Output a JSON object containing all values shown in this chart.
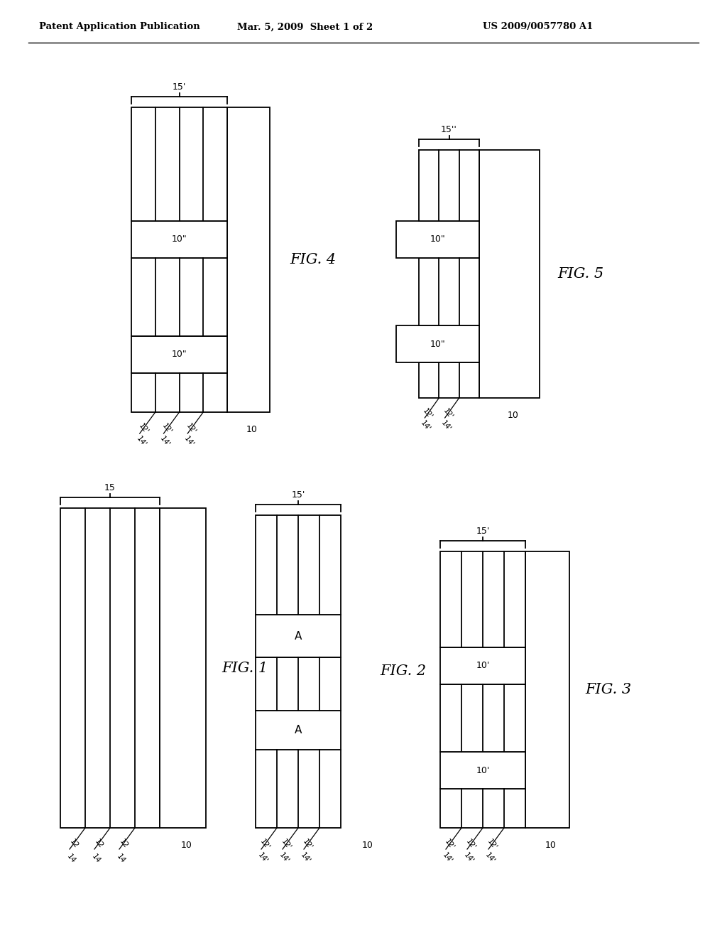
{
  "header_left": "Patent Application Publication",
  "header_mid": "Mar. 5, 2009  Sheet 1 of 2",
  "header_right": "US 2009/0057780 A1",
  "background": "#ffffff",
  "line_color": "#000000",
  "lw": 1.3
}
